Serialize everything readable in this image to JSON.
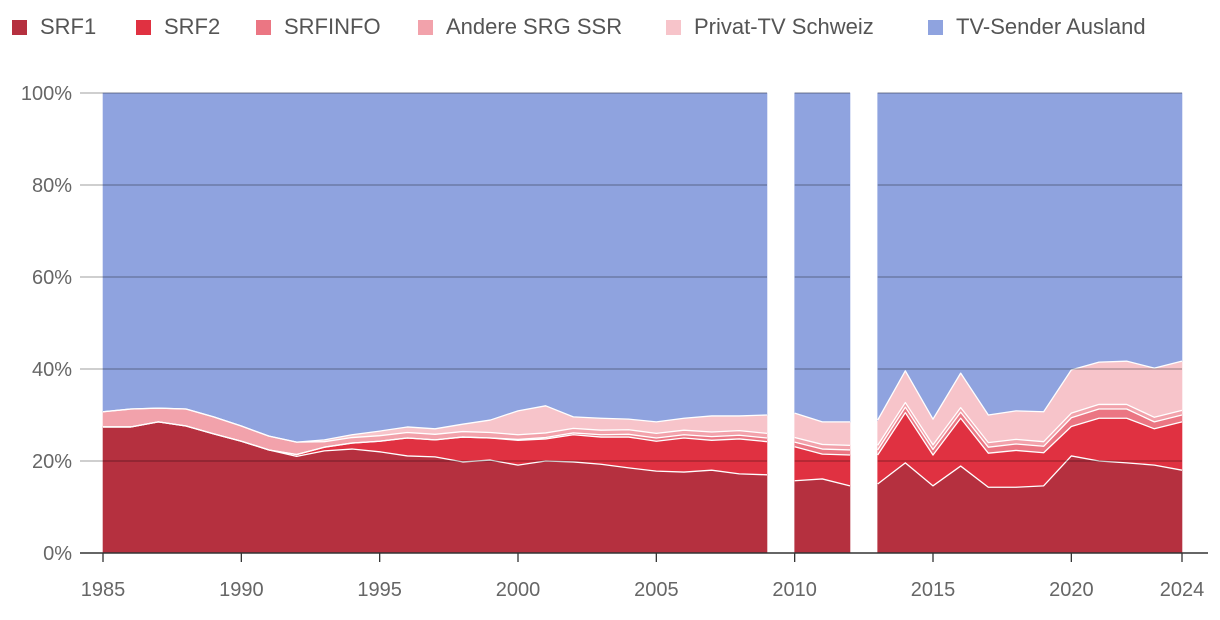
{
  "chart_data": {
    "type": "area",
    "stacked": true,
    "title": "",
    "xlabel": "",
    "ylabel": "",
    "y_unit": "%",
    "ylim": [
      0,
      100
    ],
    "grid": true,
    "legend": "top",
    "x": [
      1985,
      1986,
      1987,
      1988,
      1989,
      1990,
      1991,
      1992,
      1993,
      1994,
      1995,
      1996,
      1997,
      1998,
      1999,
      2000,
      2001,
      2002,
      2003,
      2004,
      2005,
      2006,
      2007,
      2008,
      2009,
      2010,
      2011,
      2012,
      2013,
      2014,
      2015,
      2016,
      2017,
      2018,
      2019,
      2020,
      2021,
      2022,
      2023,
      2024
    ],
    "segments": [
      [
        1985,
        2009
      ],
      [
        2010,
        2012
      ],
      [
        2013,
        2024
      ]
    ],
    "x_ticks": [
      1985,
      1990,
      1995,
      2000,
      2005,
      2010,
      2015,
      2020,
      2024
    ],
    "x_tick_labels": [
      "1985",
      "1990",
      "1995",
      "2000",
      "2005",
      "2010",
      "2015",
      "2020",
      "2024"
    ],
    "y_ticks": [
      0,
      20,
      40,
      60,
      80,
      100
    ],
    "y_tick_labels": [
      "0%",
      "20%",
      "40%",
      "60%",
      "80%",
      "100%"
    ],
    "series": [
      {
        "name": "SRF1",
        "color": "#b5303f",
        "values": [
          27.4,
          27.4,
          28.5,
          27.6,
          25.9,
          24.3,
          22.4,
          21.0,
          22.2,
          22.6,
          22.0,
          21.1,
          20.9,
          19.8,
          20.2,
          19.1,
          20.0,
          19.8,
          19.3,
          18.5,
          17.8,
          17.6,
          18.0,
          17.2,
          17.0,
          15.7,
          16.1,
          14.6,
          15.0,
          19.6,
          14.6,
          18.9,
          14.3,
          14.3,
          14.6,
          21.1,
          20.0,
          19.6,
          19.1,
          18.0
        ]
      },
      {
        "name": "SRF2",
        "color": "#e03141",
        "values": [
          0,
          0,
          0,
          0,
          0,
          0,
          0,
          0.4,
          0.8,
          1.3,
          2.3,
          3.9,
          3.7,
          5.4,
          4.8,
          5.4,
          4.8,
          5.9,
          5.9,
          6.7,
          6.5,
          7.4,
          6.5,
          7.6,
          7.2,
          7.4,
          5.4,
          6.7,
          6.3,
          10.9,
          6.7,
          10.4,
          7.4,
          8.0,
          7.2,
          6.4,
          9.3,
          9.7,
          7.9,
          10.5
        ]
      },
      {
        "name": "SRFINFO",
        "color": "#eb7683",
        "values": [
          0,
          0,
          0,
          0,
          0,
          0,
          0,
          0,
          0,
          0,
          0,
          0,
          0,
          0,
          0,
          0.2,
          0.3,
          0.4,
          0.5,
          0.6,
          0.7,
          0.7,
          0.8,
          0.8,
          0.8,
          1.0,
          1.1,
          1.1,
          1.1,
          1.2,
          1.2,
          1.3,
          1.3,
          1.4,
          1.4,
          1.9,
          2.0,
          2.0,
          1.5,
          1.5
        ]
      },
      {
        "name": "Andere SRG SSR",
        "color": "#f2a2ab",
        "values": [
          3.3,
          3.9,
          3.0,
          3.7,
          3.7,
          3.3,
          3.0,
          2.7,
          1.2,
          1.2,
          1.2,
          1.2,
          1.2,
          1.2,
          1.2,
          1.0,
          1.0,
          1.0,
          1.0,
          1.0,
          1.0,
          1.0,
          1.0,
          1.0,
          1.0,
          1.0,
          1.0,
          1.0,
          1.0,
          1.0,
          1.0,
          1.0,
          1.0,
          1.0,
          1.0,
          1.0,
          1.0,
          1.0,
          1.0,
          1.0
        ]
      },
      {
        "name": "Privat-TV Schweiz",
        "color": "#f7c4ca",
        "values": [
          0,
          0,
          0,
          0,
          0,
          0,
          0,
          0,
          0.4,
          0.6,
          1.0,
          1.2,
          1.2,
          1.6,
          2.7,
          5.2,
          5.9,
          2.5,
          2.6,
          2.3,
          2.5,
          2.6,
          3.5,
          3.2,
          4.0,
          5.3,
          4.9,
          5.1,
          5.5,
          6.9,
          5.6,
          7.5,
          6.0,
          6.2,
          6.5,
          9.4,
          9.2,
          9.4,
          10.7,
          10.7
        ]
      },
      {
        "name": "TV-Sender Ausland",
        "color": "#8fa3df",
        "values": [
          69.3,
          68.7,
          68.5,
          68.7,
          70.4,
          72.4,
          74.6,
          75.9,
          75.4,
          74.3,
          73.5,
          72.6,
          73.0,
          72.0,
          71.1,
          69.1,
          68.0,
          70.4,
          70.7,
          70.9,
          71.5,
          70.7,
          70.2,
          70.2,
          70.0,
          69.6,
          71.5,
          71.5,
          71.1,
          60.4,
          70.9,
          60.9,
          70.0,
          69.1,
          69.3,
          60.2,
          58.5,
          58.3,
          59.8,
          58.3
        ]
      }
    ]
  }
}
